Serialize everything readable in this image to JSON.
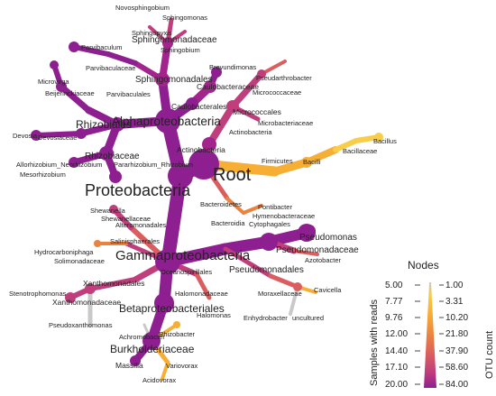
{
  "colors": {
    "c1": "#8e1f90",
    "c2": "#a3248c",
    "c3": "#c13e7c",
    "c4": "#da5e5f",
    "c5": "#ec8240",
    "c6": "#f6ae35",
    "c7": "#f8cd4a",
    "grey": "#c9c9c9"
  },
  "labels": {
    "novosphingobium": "Novosphingobium",
    "sphingomonas": "Sphingomonas",
    "sphingomonadaceae": "Sphingomonadaceae",
    "parvibaculum": "Parvibaculum",
    "sphingopyxis": "Sphingopyxis",
    "sphingobium": "Sphingobium",
    "parvibaculaceae": "Parvibaculaceae",
    "sphingomonadales": "Sphingomonadales",
    "brevundimonas": "Brevundimonas",
    "pseudarthrobacter": "Pseudarthrobacter",
    "caulobacteraceae": "Caulobacteraceae",
    "microvirga": "Microvirga",
    "beijerinckiaceae": "Beijerinckiaceae",
    "parvibaculales": "Parvibaculales",
    "caulobacterales": "Caulobacterales",
    "micrococcaceae": "Micrococcaceae",
    "micrococcales": "Micrococcales",
    "microbacteriaceae": "Microbacteriaceae",
    "rhizobiales": "Rhizobiales",
    "alphaproteobacteria": "Alphaproteobacteria",
    "actinobacteria_class": "Actinobacteria",
    "devosia": "Devosia",
    "devosiaceae": "Devosiaceae",
    "actinobacteria_phylum": "Actinobacteria",
    "bacillus": "Bacillus",
    "bacillaceae": "Bacillaceae",
    "rhizobiaceae": "Rhizobiaceae",
    "firmicutes": "Firmicutes",
    "bacilli": "Bacilli",
    "allorhizobium": "Allorhizobium_Neorhizobium",
    "pararhizobium": "Pararhizobium_Rhizobium",
    "mesorhizobium": "Mesorhizobium",
    "root": "Root",
    "proteobacteria": "Proteobacteria",
    "bacteroidetes": "Bacteroidetes",
    "shewanella": "Shewanella",
    "pontibacter": "Pontibacter",
    "shewanellaceae": "Shewanellaceae",
    "hymenobacteraceae": "Hymenobacteraceae",
    "alteromonadales": "Alteromonadales",
    "bacteroidia": "Bacteroidia",
    "cytophagales": "Cytophagales",
    "pseudomonas": "Pseudomonas",
    "salinisphaerales": "Salinisphaerales",
    "hydrocarboniphaga": "Hydrocarboniphaga",
    "pseudomonadaceae": "Pseudomonadaceae",
    "solimonadaceae": "Solimonadaceae",
    "gammaproteobacteria": "Gammaproteobacteria",
    "azotobacter": "Azotobacter",
    "pseudomonadales": "Pseudomonadales",
    "oceanospirillales": "Oceanospirillales",
    "xanthomonadales": "Xanthomonadales",
    "halomonadaceae": "Halomonadaceae",
    "stenotrophomonas": "Stenotrophomonas",
    "moraxellaceae": "Moraxellaceae",
    "cavicella": "Cavicella",
    "xanthomonadaceae": "Xanthomonadaceae",
    "betaproteobacteriales": "Betaproteobacteriales",
    "halomonas": "Halomonas",
    "enhydrobacter": "Enhydrobacter",
    "uncultured": "uncultured",
    "pseudoxanthomonas": "Pseudoxanthomonas",
    "rhizobacter": "Rhizobacter",
    "achromobacter": "Achromobacter",
    "burkholderiaceae": "Burkholderiaceae",
    "massilia": "Massilia",
    "variovorax": "Variovorax",
    "acidovorax": "Acidovorax"
  },
  "legend": {
    "title": "Nodes",
    "left_axis_label": "Samples with reads",
    "right_axis_label": "OTU count",
    "left_ticks": [
      "5.00",
      "7.77",
      "9.76",
      "12.00",
      "14.40",
      "17.10",
      "20.00"
    ],
    "right_ticks": [
      "1.00",
      "3.31",
      "10.20",
      "21.80",
      "37.90",
      "58.60",
      "84.00"
    ]
  }
}
